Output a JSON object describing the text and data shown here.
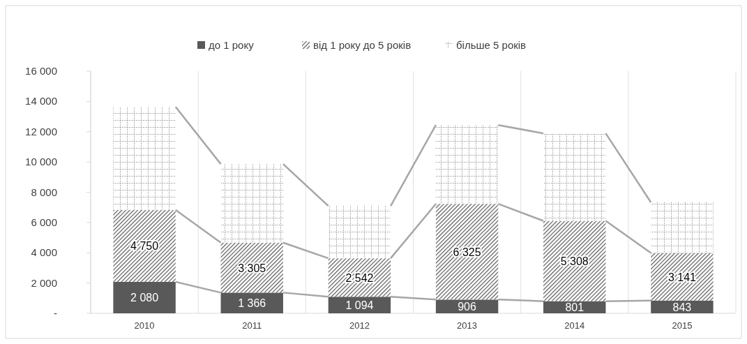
{
  "chart_data": {
    "type": "bar",
    "stacked": true,
    "categories": [
      "2010",
      "2011",
      "2012",
      "2013",
      "2014",
      "2015"
    ],
    "series": [
      {
        "name": "до 1 року",
        "color": "#595959",
        "values": [
          2080,
          1366,
          1094,
          906,
          801,
          843
        ],
        "value_labels": [
          "2 080",
          "1 366",
          "1 094",
          "906",
          "801",
          "843"
        ]
      },
      {
        "name": "від  1 року до 5 років",
        "color": "#595959",
        "values": [
          4750,
          3305,
          2542,
          6325,
          5308,
          3141
        ],
        "value_labels": [
          "4 750",
          "3 305",
          "2 542",
          "6 325",
          "5 308",
          "3 141"
        ]
      },
      {
        "name": "більше 5 років",
        "color": "#7f7f7f",
        "values": [
          6810,
          5190,
          3460,
          5210,
          5780,
          3350
        ]
      }
    ],
    "ylim": [
      0,
      16000
    ],
    "yticks": [
      {
        "value": 0,
        "label": "-"
      },
      {
        "value": 2000,
        "label": "2 000"
      },
      {
        "value": 4000,
        "label": "4 000"
      },
      {
        "value": 6000,
        "label": "6 000"
      },
      {
        "value": 8000,
        "label": "8 000"
      },
      {
        "value": 10000,
        "label": "10 000"
      },
      {
        "value": 12000,
        "label": "12 000"
      },
      {
        "value": 14000,
        "label": "14 000"
      },
      {
        "value": 16000,
        "label": "16 000"
      }
    ],
    "grid": "x",
    "legend": "top"
  }
}
